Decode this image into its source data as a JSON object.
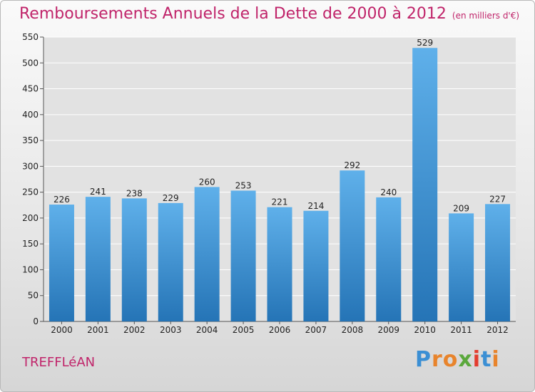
{
  "title": "Remboursements Annuels de la Dette de 2000 à 2012",
  "unit_note": "(en milliers d'€)",
  "town": "TREFFLéAN",
  "brand": {
    "text": "Proxiti",
    "letter_colors": [
      "#3b8fd4",
      "#e8842c",
      "#e8842c",
      "#5aa83c",
      "#e33c2f",
      "#3b8fd4",
      "#e8842c"
    ]
  },
  "colors": {
    "bar_light": "#5fb0ea",
    "bar_dark": "#2574b6",
    "accent": "#c0246a",
    "grid": "#ffffff"
  },
  "chart_data": {
    "type": "bar",
    "categories": [
      "2000",
      "2001",
      "2002",
      "2003",
      "2004",
      "2005",
      "2006",
      "2007",
      "2008",
      "2009",
      "2010",
      "2011",
      "2012"
    ],
    "values": [
      226,
      241,
      238,
      229,
      260,
      253,
      221,
      214,
      292,
      240,
      529,
      209,
      227
    ],
    "ylim": [
      0,
      550
    ],
    "yticks": [
      0,
      50,
      100,
      150,
      200,
      250,
      300,
      350,
      400,
      450,
      500,
      550
    ],
    "grid": true,
    "data_labels": true
  }
}
